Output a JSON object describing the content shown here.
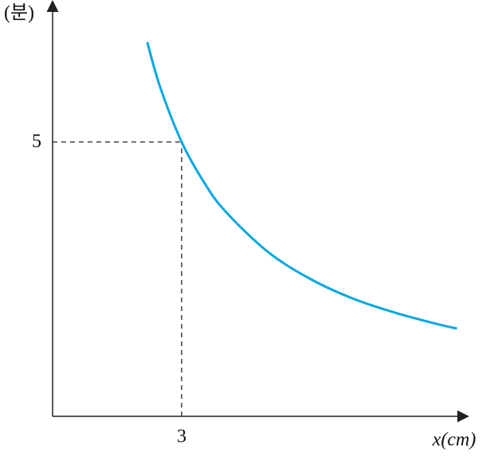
{
  "chart_data": {
    "type": "line",
    "x_label": "x(cm)",
    "y_label": "(분)",
    "x": [
      2.2,
      2.5,
      3,
      3.5,
      4,
      5,
      6,
      7,
      8,
      9,
      9.4
    ],
    "series": [
      {
        "color": "#0aa8e0",
        "values": [
          6.82,
          6,
          5,
          4.29,
          3.75,
          3,
          2.5,
          2.14,
          1.88,
          1.67,
          1.6
        ]
      }
    ],
    "xlim": [
      0,
      9.6
    ],
    "ylim": [
      0,
      7.5
    ],
    "xticks": [
      3
    ],
    "yticks": [
      5
    ]
  }
}
